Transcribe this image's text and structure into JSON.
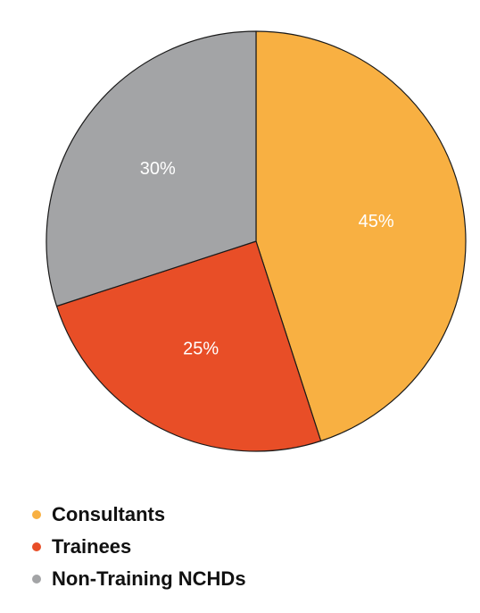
{
  "chart_data": {
    "type": "pie",
    "categories": [
      "Consultants",
      "Trainees",
      "Non-Training NCHDs"
    ],
    "values": [
      45,
      25,
      30
    ],
    "labels": [
      "45%",
      "25%",
      "30%"
    ],
    "colors": [
      "#F8B042",
      "#E84E27",
      "#A3A4A6"
    ],
    "start_angle_deg": 0,
    "direction": "clockwise",
    "legend_position": "bottom-left"
  }
}
